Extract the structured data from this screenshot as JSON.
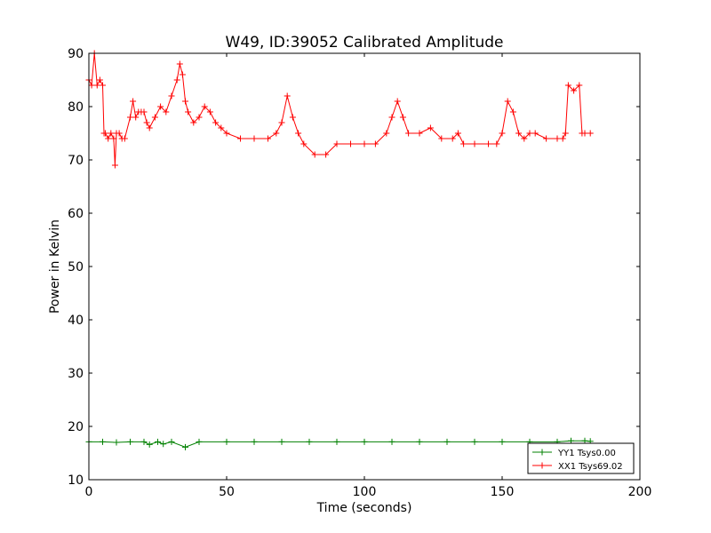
{
  "chart_data": {
    "type": "line",
    "title": "W49, ID:39052 Calibrated Amplitude",
    "xlabel": "Time (seconds)",
    "ylabel": "Power in Kelvin",
    "xlim": [
      0,
      200
    ],
    "ylim": [
      10,
      90
    ],
    "xticks": [
      0,
      50,
      100,
      150,
      200
    ],
    "xtick_labels": [
      "0",
      "50",
      "100",
      "150",
      "200"
    ],
    "yticks": [
      10,
      20,
      30,
      40,
      50,
      60,
      70,
      80,
      90
    ],
    "ytick_labels": [
      "10",
      "20",
      "30",
      "40",
      "50",
      "60",
      "70",
      "80",
      "90"
    ],
    "grid": false,
    "legend_position": "lower-right",
    "marker": "+",
    "series": [
      {
        "name": "YY1 Tsys0.00",
        "color": "#008000",
        "x": [
          0,
          5,
          10,
          15,
          20,
          22,
          25,
          27,
          30,
          35,
          40,
          50,
          60,
          70,
          80,
          90,
          100,
          110,
          120,
          130,
          140,
          150,
          160,
          170,
          175,
          180,
          182
        ],
        "y": [
          17.1,
          17.1,
          17.0,
          17.1,
          17.1,
          16.6,
          17.1,
          16.7,
          17.1,
          16.1,
          17.1,
          17.1,
          17.1,
          17.1,
          17.1,
          17.1,
          17.1,
          17.1,
          17.1,
          17.1,
          17.1,
          17.1,
          17.1,
          17.1,
          17.3,
          17.3,
          17.2
        ]
      },
      {
        "name": "XX1 Tsys69.02",
        "color": "#ff0000",
        "x": [
          0,
          1,
          2,
          3,
          4,
          5,
          5.5,
          6,
          7,
          8,
          9,
          9.5,
          10,
          11,
          12,
          13,
          15,
          16,
          17,
          18,
          19,
          20,
          21,
          22,
          24,
          26,
          28,
          30,
          32,
          33,
          34,
          35,
          36,
          38,
          40,
          42,
          44,
          46,
          48,
          50,
          55,
          60,
          65,
          68,
          70,
          72,
          74,
          76,
          78,
          82,
          86,
          90,
          95,
          100,
          104,
          108,
          110,
          112,
          114,
          116,
          120,
          124,
          128,
          132,
          134,
          136,
          140,
          145,
          148,
          150,
          152,
          154,
          156,
          158,
          160,
          162,
          166,
          170,
          172,
          173,
          174,
          176,
          178,
          179,
          180,
          182
        ],
        "y": [
          85,
          84,
          90,
          84,
          85,
          84,
          75,
          75,
          74,
          75,
          74,
          69,
          75,
          75,
          74,
          74,
          78,
          81,
          78,
          79,
          79,
          79,
          77,
          76,
          78,
          80,
          79,
          82,
          85,
          88,
          86,
          81,
          79,
          77,
          78,
          80,
          79,
          77,
          76,
          75,
          74,
          74,
          74,
          75,
          77,
          82,
          78,
          75,
          73,
          71,
          71,
          73,
          73,
          73,
          73,
          75,
          78,
          81,
          78,
          75,
          75,
          76,
          74,
          74,
          75,
          73,
          73,
          73,
          73,
          75,
          81,
          79,
          75,
          74,
          75,
          75,
          74,
          74,
          74,
          75,
          84,
          83,
          84,
          75,
          75,
          75
        ]
      }
    ]
  }
}
